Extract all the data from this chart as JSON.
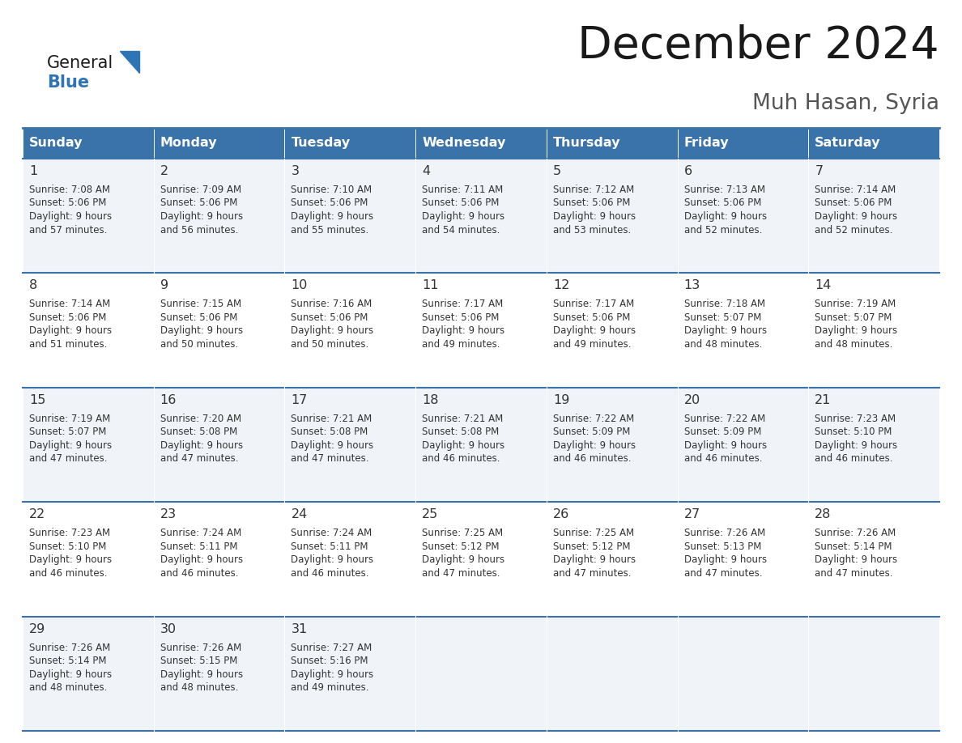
{
  "title": "December 2024",
  "subtitle": "Muh Hasan, Syria",
  "header_color": "#3a72aa",
  "header_text_color": "#ffffff",
  "cell_bg_color_odd": "#f0f4f8",
  "cell_bg_color_even": "#ffffff",
  "text_color": "#333333",
  "border_color": "#3a72aa",
  "logo_text_color": "#1a1a1a",
  "logo_blue_color": "#2e75b6",
  "days_of_week": [
    "Sunday",
    "Monday",
    "Tuesday",
    "Wednesday",
    "Thursday",
    "Friday",
    "Saturday"
  ],
  "calendar_data": [
    [
      {
        "day": "1",
        "sunrise": "7:08 AM",
        "sunset": "5:06 PM",
        "dl1": "Daylight: 9 hours",
        "dl2": "and 57 minutes."
      },
      {
        "day": "2",
        "sunrise": "7:09 AM",
        "sunset": "5:06 PM",
        "dl1": "Daylight: 9 hours",
        "dl2": "and 56 minutes."
      },
      {
        "day": "3",
        "sunrise": "7:10 AM",
        "sunset": "5:06 PM",
        "dl1": "Daylight: 9 hours",
        "dl2": "and 55 minutes."
      },
      {
        "day": "4",
        "sunrise": "7:11 AM",
        "sunset": "5:06 PM",
        "dl1": "Daylight: 9 hours",
        "dl2": "and 54 minutes."
      },
      {
        "day": "5",
        "sunrise": "7:12 AM",
        "sunset": "5:06 PM",
        "dl1": "Daylight: 9 hours",
        "dl2": "and 53 minutes."
      },
      {
        "day": "6",
        "sunrise": "7:13 AM",
        "sunset": "5:06 PM",
        "dl1": "Daylight: 9 hours",
        "dl2": "and 52 minutes."
      },
      {
        "day": "7",
        "sunrise": "7:14 AM",
        "sunset": "5:06 PM",
        "dl1": "Daylight: 9 hours",
        "dl2": "and 52 minutes."
      }
    ],
    [
      {
        "day": "8",
        "sunrise": "7:14 AM",
        "sunset": "5:06 PM",
        "dl1": "Daylight: 9 hours",
        "dl2": "and 51 minutes."
      },
      {
        "day": "9",
        "sunrise": "7:15 AM",
        "sunset": "5:06 PM",
        "dl1": "Daylight: 9 hours",
        "dl2": "and 50 minutes."
      },
      {
        "day": "10",
        "sunrise": "7:16 AM",
        "sunset": "5:06 PM",
        "dl1": "Daylight: 9 hours",
        "dl2": "and 50 minutes."
      },
      {
        "day": "11",
        "sunrise": "7:17 AM",
        "sunset": "5:06 PM",
        "dl1": "Daylight: 9 hours",
        "dl2": "and 49 minutes."
      },
      {
        "day": "12",
        "sunrise": "7:17 AM",
        "sunset": "5:06 PM",
        "dl1": "Daylight: 9 hours",
        "dl2": "and 49 minutes."
      },
      {
        "day": "13",
        "sunrise": "7:18 AM",
        "sunset": "5:07 PM",
        "dl1": "Daylight: 9 hours",
        "dl2": "and 48 minutes."
      },
      {
        "day": "14",
        "sunrise": "7:19 AM",
        "sunset": "5:07 PM",
        "dl1": "Daylight: 9 hours",
        "dl2": "and 48 minutes."
      }
    ],
    [
      {
        "day": "15",
        "sunrise": "7:19 AM",
        "sunset": "5:07 PM",
        "dl1": "Daylight: 9 hours",
        "dl2": "and 47 minutes."
      },
      {
        "day": "16",
        "sunrise": "7:20 AM",
        "sunset": "5:08 PM",
        "dl1": "Daylight: 9 hours",
        "dl2": "and 47 minutes."
      },
      {
        "day": "17",
        "sunrise": "7:21 AM",
        "sunset": "5:08 PM",
        "dl1": "Daylight: 9 hours",
        "dl2": "and 47 minutes."
      },
      {
        "day": "18",
        "sunrise": "7:21 AM",
        "sunset": "5:08 PM",
        "dl1": "Daylight: 9 hours",
        "dl2": "and 46 minutes."
      },
      {
        "day": "19",
        "sunrise": "7:22 AM",
        "sunset": "5:09 PM",
        "dl1": "Daylight: 9 hours",
        "dl2": "and 46 minutes."
      },
      {
        "day": "20",
        "sunrise": "7:22 AM",
        "sunset": "5:09 PM",
        "dl1": "Daylight: 9 hours",
        "dl2": "and 46 minutes."
      },
      {
        "day": "21",
        "sunrise": "7:23 AM",
        "sunset": "5:10 PM",
        "dl1": "Daylight: 9 hours",
        "dl2": "and 46 minutes."
      }
    ],
    [
      {
        "day": "22",
        "sunrise": "7:23 AM",
        "sunset": "5:10 PM",
        "dl1": "Daylight: 9 hours",
        "dl2": "and 46 minutes."
      },
      {
        "day": "23",
        "sunrise": "7:24 AM",
        "sunset": "5:11 PM",
        "dl1": "Daylight: 9 hours",
        "dl2": "and 46 minutes."
      },
      {
        "day": "24",
        "sunrise": "7:24 AM",
        "sunset": "5:11 PM",
        "dl1": "Daylight: 9 hours",
        "dl2": "and 46 minutes."
      },
      {
        "day": "25",
        "sunrise": "7:25 AM",
        "sunset": "5:12 PM",
        "dl1": "Daylight: 9 hours",
        "dl2": "and 47 minutes."
      },
      {
        "day": "26",
        "sunrise": "7:25 AM",
        "sunset": "5:12 PM",
        "dl1": "Daylight: 9 hours",
        "dl2": "and 47 minutes."
      },
      {
        "day": "27",
        "sunrise": "7:26 AM",
        "sunset": "5:13 PM",
        "dl1": "Daylight: 9 hours",
        "dl2": "and 47 minutes."
      },
      {
        "day": "28",
        "sunrise": "7:26 AM",
        "sunset": "5:14 PM",
        "dl1": "Daylight: 9 hours",
        "dl2": "and 47 minutes."
      }
    ],
    [
      {
        "day": "29",
        "sunrise": "7:26 AM",
        "sunset": "5:14 PM",
        "dl1": "Daylight: 9 hours",
        "dl2": "and 48 minutes."
      },
      {
        "day": "30",
        "sunrise": "7:26 AM",
        "sunset": "5:15 PM",
        "dl1": "Daylight: 9 hours",
        "dl2": "and 48 minutes."
      },
      {
        "day": "31",
        "sunrise": "7:27 AM",
        "sunset": "5:16 PM",
        "dl1": "Daylight: 9 hours",
        "dl2": "and 49 minutes."
      },
      null,
      null,
      null,
      null
    ]
  ]
}
